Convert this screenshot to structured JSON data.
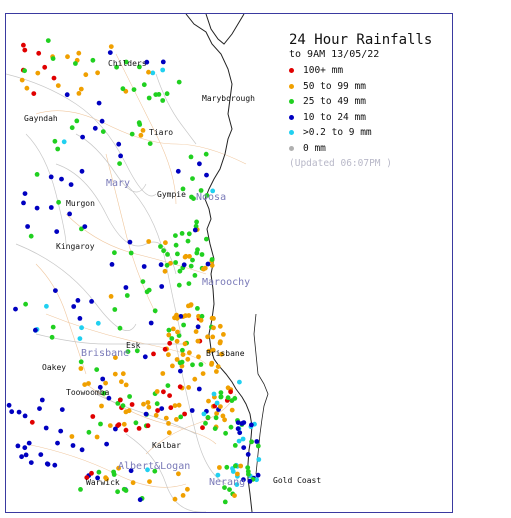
{
  "legend": {
    "title": "24 Hour Rainfalls",
    "subtitle": "to 9AM 13/05/22",
    "updated": "(Updated 06:07PM  )",
    "categories": [
      {
        "label": "100+ mm",
        "color": "#e00000",
        "icon": "red-dot"
      },
      {
        "label": "50  to 99 mm",
        "color": "#f0a000",
        "icon": "orange-dot"
      },
      {
        "label": "25  to 49 mm",
        "color": "#20d020",
        "icon": "green-dot"
      },
      {
        "label": "10  to 24 mm",
        "color": "#0000c0",
        "icon": "blue-dot"
      },
      {
        "label": ">0.2 to 9 mm",
        "color": "#20d0f0",
        "icon": "cyan-dot"
      },
      {
        "label": "0 mm",
        "color": "#b0b0b0",
        "icon": "grey-dot"
      }
    ]
  },
  "towns": {
    "childers": "Childers",
    "gayndah": "Gayndah",
    "maryborough": "Maryborough",
    "kilkivan": "Tiaro",
    "gympie": "Gympie",
    "murgon": "Murgon",
    "kingaroy": "Kingaroy",
    "esk": "Esk",
    "brisbane": "Brisbane",
    "oakey": "Oakey",
    "toowoomba": "Toowoomba",
    "kalbar": "Kalbar",
    "warwick": "Warwick",
    "gold_coast": "Gold Coast"
  },
  "basins": {
    "mary": "Mary",
    "noosa": "Noosa",
    "maroochy": "Maroochy",
    "brisbane": "Brisbane",
    "albert_logan": "Albert&Logan",
    "nerang": "Nerang"
  }
}
